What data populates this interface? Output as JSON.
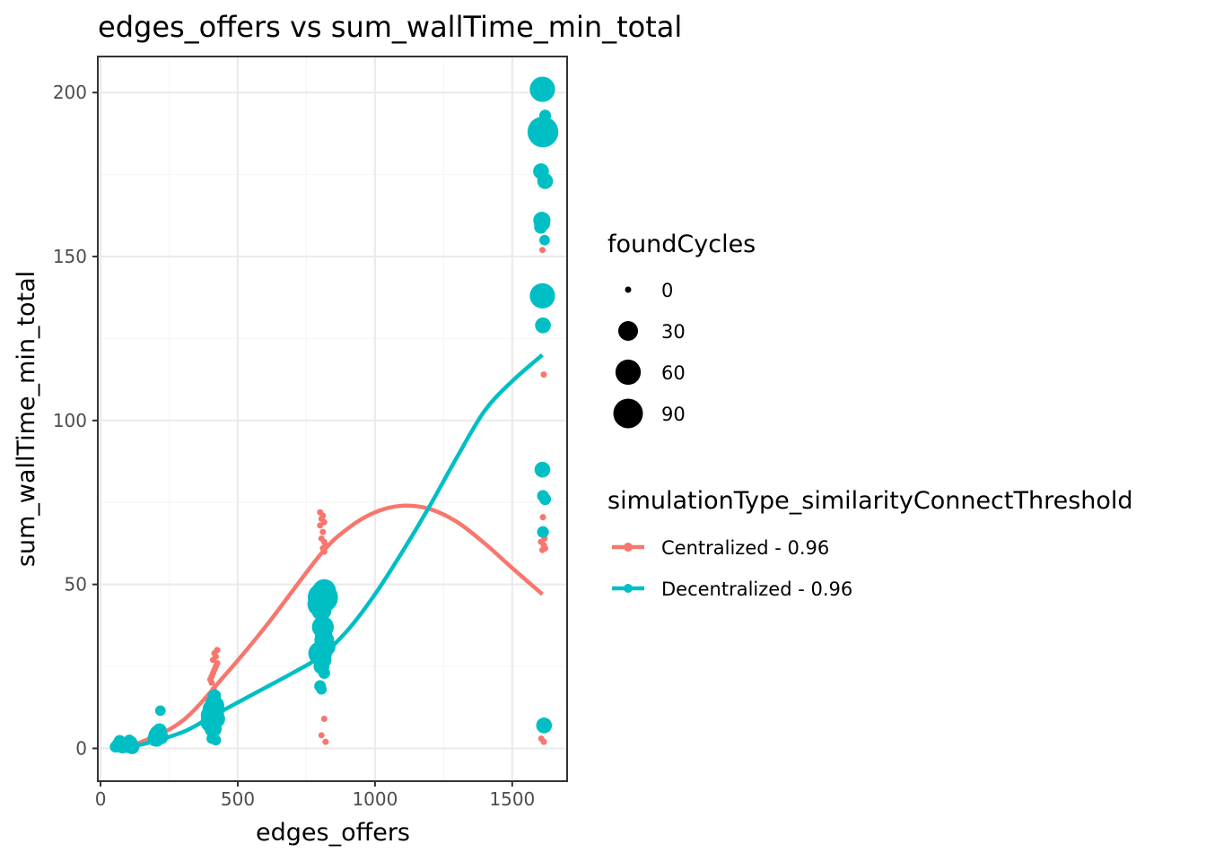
{
  "chart_data": {
    "type": "scatter",
    "title": "edges_offers  vs  sum_wallTime_min_total",
    "xlabel": "edges_offers",
    "ylabel": "sum_wallTime_min_total",
    "xlim": [
      -10,
      1700
    ],
    "ylim": [
      -10,
      211
    ],
    "x_ticks": [
      0,
      500,
      1000,
      1500
    ],
    "y_ticks": [
      0,
      50,
      100,
      150,
      200
    ],
    "x_tick_labels": [
      "0",
      "500",
      "1000",
      "1500"
    ],
    "y_tick_labels": [
      "0",
      "50",
      "100",
      "150",
      "200"
    ],
    "grid": true,
    "size_legend": {
      "title": "foundCycles",
      "entries": [
        {
          "label": "0",
          "value": 0
        },
        {
          "label": "30",
          "value": 30
        },
        {
          "label": "60",
          "value": 60
        },
        {
          "label": "90",
          "value": 90
        }
      ]
    },
    "color_legend": {
      "title": "simulationType_similarityConnectThreshold",
      "placement": "right"
    },
    "series": [
      {
        "name": "Centralized - 0.96",
        "color": "#F8766D",
        "smooth": [
          [
            60,
            0.2
          ],
          [
            150,
            2
          ],
          [
            300,
            8.5
          ],
          [
            450,
            22
          ],
          [
            600,
            37
          ],
          [
            800,
            59
          ],
          [
            900,
            67
          ],
          [
            1000,
            72
          ],
          [
            1100,
            74
          ],
          [
            1200,
            73
          ],
          [
            1300,
            69
          ],
          [
            1400,
            62.5
          ],
          [
            1500,
            55
          ],
          [
            1610,
            47
          ]
        ],
        "points": [
          [
            55,
            0.3,
            0
          ],
          [
            65,
            0.6,
            0
          ],
          [
            80,
            0.2,
            0
          ],
          [
            100,
            0.8,
            0
          ],
          [
            115,
            1.2,
            0
          ],
          [
            200,
            2.5,
            0
          ],
          [
            210,
            3.5,
            0
          ],
          [
            220,
            4.5,
            0
          ],
          [
            225,
            5.5,
            0
          ],
          [
            215,
            3,
            0
          ],
          [
            400,
            21,
            0
          ],
          [
            405,
            22,
            0
          ],
          [
            410,
            23,
            0
          ],
          [
            415,
            24,
            0
          ],
          [
            420,
            25,
            0
          ],
          [
            425,
            26,
            0
          ],
          [
            410,
            27,
            0
          ],
          [
            420,
            28,
            0
          ],
          [
            415,
            29,
            0
          ],
          [
            425,
            30,
            0
          ],
          [
            405,
            20,
            0
          ],
          [
            412,
            18,
            0
          ],
          [
            420,
            16,
            0
          ],
          [
            408,
            14,
            0
          ],
          [
            800,
            72,
            0
          ],
          [
            810,
            71,
            0
          ],
          [
            805,
            70,
            0
          ],
          [
            815,
            69,
            0
          ],
          [
            800,
            68,
            0
          ],
          [
            810,
            66,
            0
          ],
          [
            805,
            64,
            0
          ],
          [
            815,
            63,
            0
          ],
          [
            820,
            62,
            0
          ],
          [
            810,
            61,
            0
          ],
          [
            815,
            60,
            0
          ],
          [
            815,
            9,
            0
          ],
          [
            805,
            4,
            0
          ],
          [
            820,
            2,
            0
          ],
          [
            1610,
            152,
            0
          ],
          [
            1615,
            114,
            0
          ],
          [
            1612,
            70.5,
            0
          ],
          [
            1605,
            63,
            0
          ],
          [
            1615,
            62,
            0
          ],
          [
            1620,
            61,
            0
          ],
          [
            1610,
            60.5,
            0
          ],
          [
            1618,
            64,
            0
          ],
          [
            1606,
            3,
            0
          ],
          [
            1615,
            2,
            0
          ],
          [
            1620,
            8,
            0
          ]
        ]
      },
      {
        "name": "Decentralized - 0.96",
        "color": "#00BFC4",
        "smooth": [
          [
            60,
            0.3
          ],
          [
            150,
            1.2
          ],
          [
            300,
            5
          ],
          [
            400,
            9.5
          ],
          [
            500,
            14
          ],
          [
            600,
            18.5
          ],
          [
            700,
            23
          ],
          [
            800,
            28
          ],
          [
            900,
            36
          ],
          [
            1000,
            47
          ],
          [
            1100,
            60
          ],
          [
            1200,
            74
          ],
          [
            1300,
            89
          ],
          [
            1400,
            103
          ],
          [
            1500,
            112
          ],
          [
            1610,
            120
          ]
        ],
        "points": [
          [
            55,
            0.5,
            5
          ],
          [
            65,
            1.2,
            8
          ],
          [
            70,
            2.2,
            6
          ],
          [
            80,
            0.6,
            10
          ],
          [
            100,
            1,
            15
          ],
          [
            110,
            1.8,
            8
          ],
          [
            115,
            0.5,
            12
          ],
          [
            105,
            2.5,
            4
          ],
          [
            200,
            3,
            15
          ],
          [
            205,
            4,
            18
          ],
          [
            210,
            4.5,
            20
          ],
          [
            215,
            5.5,
            10
          ],
          [
            220,
            3.5,
            12
          ],
          [
            205,
            2.5,
            8
          ],
          [
            218,
            11.5,
            3
          ],
          [
            400,
            8,
            30
          ],
          [
            405,
            10,
            40
          ],
          [
            410,
            12,
            35
          ],
          [
            415,
            13,
            30
          ],
          [
            420,
            9,
            25
          ],
          [
            410,
            6,
            20
          ],
          [
            408,
            14,
            10
          ],
          [
            415,
            16,
            8
          ],
          [
            405,
            3,
            3
          ],
          [
            420,
            2.5,
            3
          ],
          [
            412,
            11,
            35
          ],
          [
            800,
            44,
            60
          ],
          [
            810,
            46,
            95
          ],
          [
            815,
            48,
            50
          ],
          [
            805,
            42,
            30
          ],
          [
            810,
            37,
            40
          ],
          [
            815,
            33,
            30
          ],
          [
            800,
            29,
            50
          ],
          [
            820,
            31,
            30
          ],
          [
            810,
            27,
            20
          ],
          [
            805,
            25,
            15
          ],
          [
            815,
            23,
            5
          ],
          [
            800,
            19,
            5
          ],
          [
            805,
            18,
            3
          ],
          [
            812,
            35,
            20
          ],
          [
            1610,
            201,
            60
          ],
          [
            1612,
            188,
            100
          ],
          [
            1620,
            193,
            5
          ],
          [
            1605,
            176,
            15
          ],
          [
            1620,
            173,
            15
          ],
          [
            1608,
            161,
            20
          ],
          [
            1612,
            160,
            10
          ],
          [
            1604,
            159,
            8
          ],
          [
            1618,
            155,
            3
          ],
          [
            1610,
            138,
            60
          ],
          [
            1612,
            129,
            15
          ],
          [
            1610,
            85,
            15
          ],
          [
            1612,
            77,
            5
          ],
          [
            1620,
            76,
            5
          ],
          [
            1612,
            66,
            5
          ],
          [
            1616,
            7,
            15
          ]
        ]
      }
    ]
  }
}
